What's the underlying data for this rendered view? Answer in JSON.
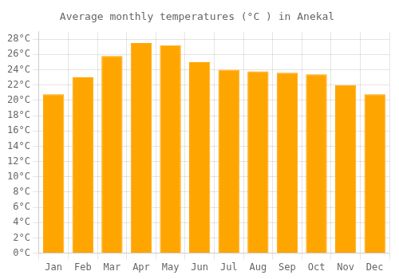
{
  "chart_data": {
    "type": "bar",
    "title": "Average monthly temperatures (°C ) in Anekal",
    "categories": [
      "Jan",
      "Feb",
      "Mar",
      "Apr",
      "May",
      "Jun",
      "Jul",
      "Aug",
      "Sep",
      "Oct",
      "Nov",
      "Dec"
    ],
    "values": [
      20.8,
      23.0,
      25.8,
      27.5,
      27.2,
      25.0,
      24.0,
      23.8,
      23.6,
      23.4,
      22.0,
      20.8
    ],
    "color": "#FFA500",
    "ylim": [
      0,
      29
    ],
    "yticks": [
      {
        "value": 0,
        "label": "0°C"
      },
      {
        "value": 2,
        "label": "2°C"
      },
      {
        "value": 4,
        "label": "4°C"
      },
      {
        "value": 6,
        "label": "6°C"
      },
      {
        "value": 8,
        "label": "8°C"
      },
      {
        "value": 10,
        "label": "10°C"
      },
      {
        "value": 12,
        "label": "12°C"
      },
      {
        "value": 14,
        "label": "14°C"
      },
      {
        "value": 16,
        "label": "16°C"
      },
      {
        "value": 18,
        "label": "18°C"
      },
      {
        "value": 20,
        "label": "20°C"
      },
      {
        "value": 22,
        "label": "22°C"
      },
      {
        "value": 24,
        "label": "24°C"
      },
      {
        "value": 26,
        "label": "26°C"
      },
      {
        "value": 28,
        "label": "28°C"
      }
    ],
    "grid": true
  }
}
